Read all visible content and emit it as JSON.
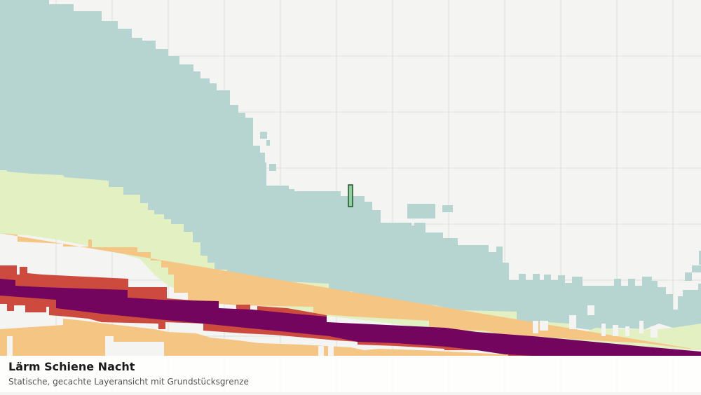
{
  "caption": {
    "title": "Lärm Schiene Nacht",
    "subtitle": "Statische, gecachte Layeransicht mit Grundstücksgrenze"
  },
  "colors": {
    "background": "#f4f4f2",
    "grid": "#dcdfdc",
    "band_lowest": "#b6d5d1",
    "band_low": "#e2f0c2",
    "band_mid": "#f4c583",
    "band_high": "#cd4a3e",
    "band_highest": "#74055e",
    "parcel_fill": "#8fd19e",
    "parcel_stroke": "#1f4f2a"
  },
  "chart_data": {
    "type": "map",
    "layer": "Lärm Schiene Nacht",
    "noise_bands": [
      "band_lowest",
      "band_low",
      "band_mid",
      "band_high",
      "band_highest"
    ],
    "features": [
      "noise-contour-bands",
      "parcel-boundary",
      "grid"
    ]
  }
}
